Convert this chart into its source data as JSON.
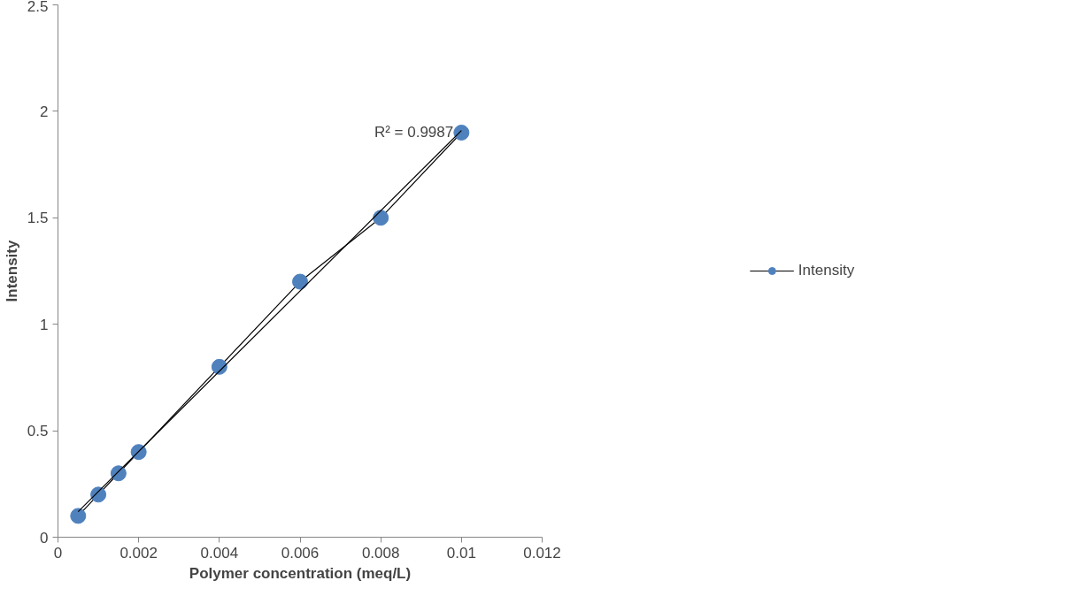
{
  "chart_data": {
    "type": "line",
    "xlabel": "Polymer concentration (meq/L)",
    "ylabel": "Intensity",
    "x": [
      0.0005,
      0.001,
      0.0015,
      0.002,
      0.004,
      0.006,
      0.008,
      0.01
    ],
    "series": [
      {
        "name": "Intensity",
        "color": "#4f81bd",
        "values": [
          0.1,
          0.2,
          0.3,
          0.4,
          0.8,
          1.2,
          1.5,
          1.9
        ],
        "marker": "circle"
      },
      {
        "color": "#000000",
        "x": [
          0.0005,
          0.01
        ],
        "values": [
          0.12,
          1.91
        ],
        "marker": "none"
      }
    ],
    "annotations": [
      {
        "text": "R² = 0.9987",
        "x": 0.0098,
        "y": 1.9
      }
    ],
    "xlim": [
      0,
      0.012
    ],
    "xticks": [
      0,
      0.002,
      0.004,
      0.006,
      0.008,
      0.01,
      0.012
    ],
    "ylim": [
      0,
      2.5
    ],
    "yticks": [
      0,
      0.5,
      1,
      1.5,
      2,
      2.5
    ],
    "grid": false,
    "legend": "right"
  }
}
